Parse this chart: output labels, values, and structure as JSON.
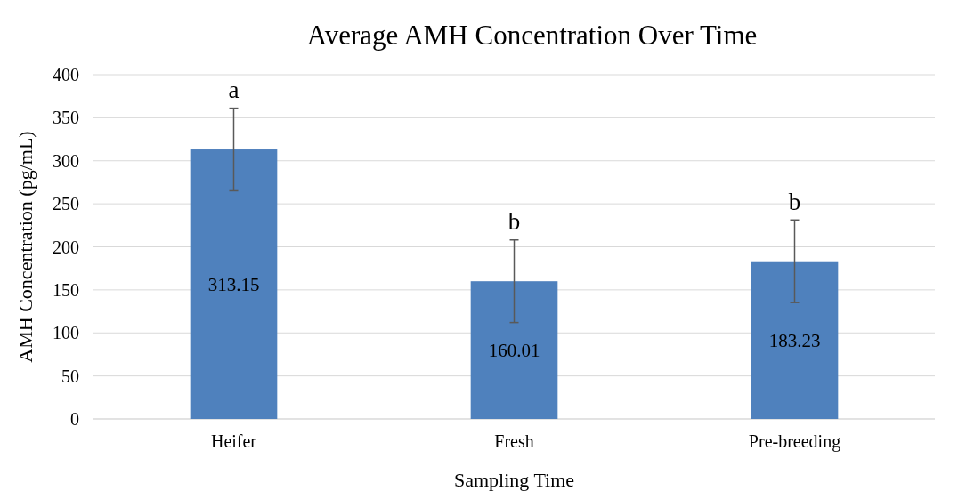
{
  "chart_data": {
    "type": "bar",
    "title": "Average AMH Concentration Over Time",
    "xlabel": "Sampling Time",
    "ylabel": "AMH Concentration (pg/mL)",
    "categories": [
      "Heifer",
      "Fresh",
      "Pre-breeding"
    ],
    "values": [
      313.15,
      160.01,
      183.23
    ],
    "errors": [
      48,
      48,
      48
    ],
    "color": "#4f81bd",
    "ylim": [
      0,
      400
    ],
    "yticks": [
      0,
      50,
      100,
      150,
      200,
      250,
      300,
      350,
      400
    ],
    "grid": "y",
    "data_labels": true,
    "annotations": [
      {
        "text": "a",
        "x": "Heifer",
        "y": 361
      },
      {
        "text": "b",
        "x": "Fresh",
        "y": 208
      },
      {
        "text": "b",
        "x": "Pre-breeding",
        "y": 231
      }
    ]
  }
}
